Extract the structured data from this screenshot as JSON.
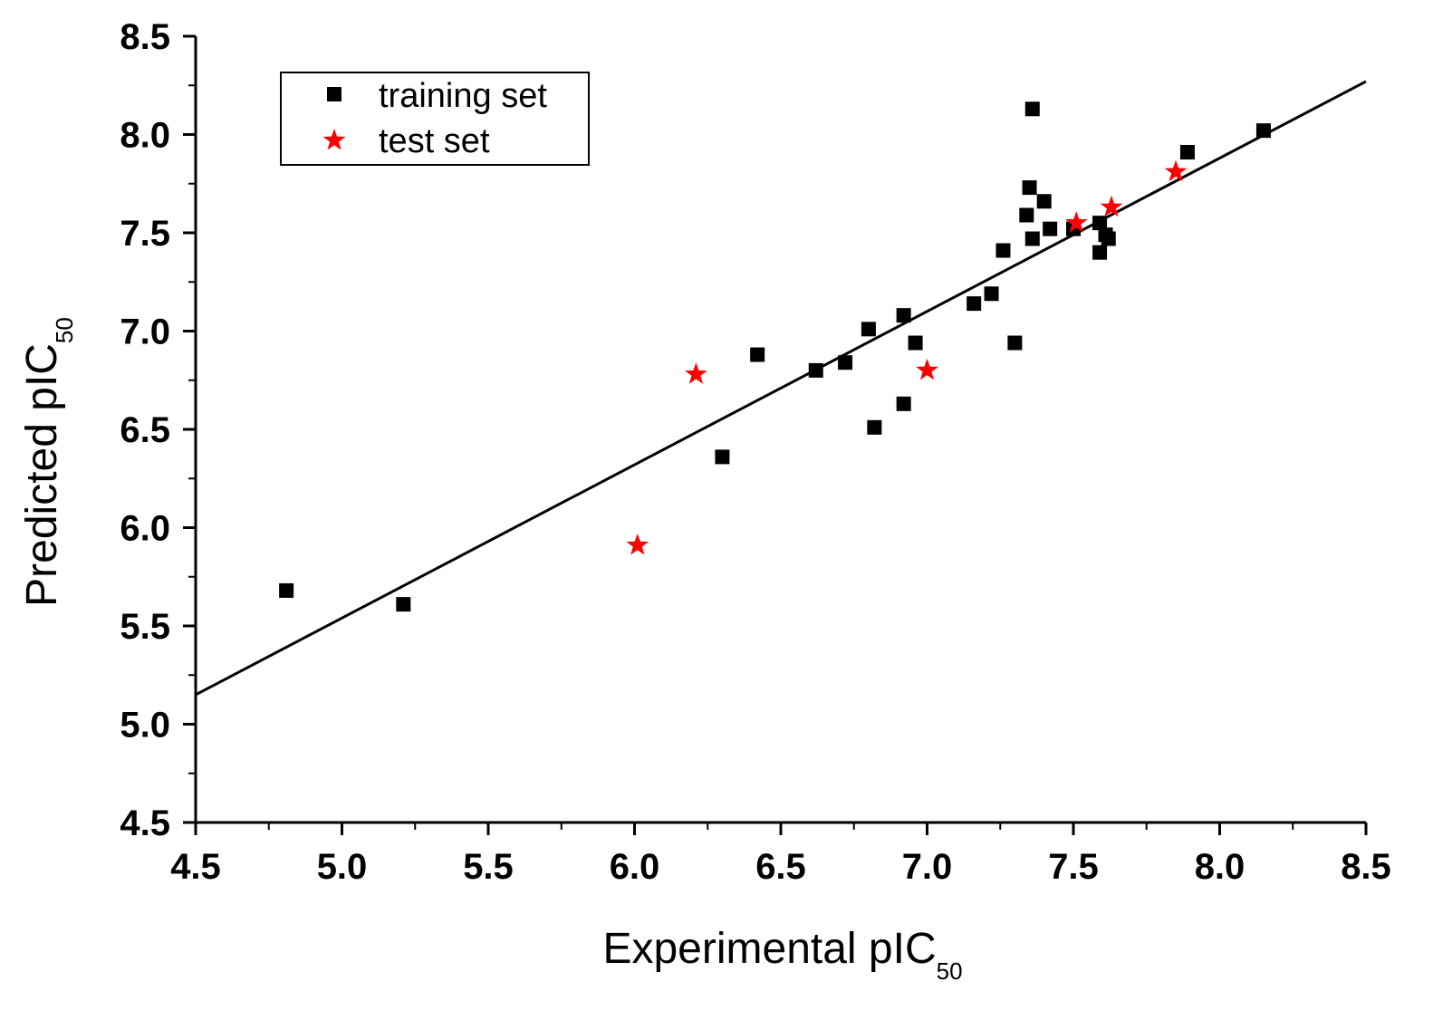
{
  "chart_data": {
    "type": "scatter",
    "xlabel": "Experimental pIC",
    "xlabel_sub": "50",
    "ylabel": "Predicted pIC",
    "ylabel_sub": "50",
    "xlim": [
      4.5,
      8.5
    ],
    "ylim": [
      4.5,
      8.5
    ],
    "xticks": [
      "4.5",
      "5.0",
      "5.5",
      "6.0",
      "6.5",
      "7.0",
      "7.5",
      "8.0",
      "8.5"
    ],
    "yticks": [
      "4.5",
      "5.0",
      "5.5",
      "6.0",
      "6.5",
      "7.0",
      "7.5",
      "8.0",
      "8.5"
    ],
    "grid": false,
    "legend_position": "top-left",
    "series": [
      {
        "name": "training set",
        "marker": "square",
        "color": "#000000",
        "points": [
          [
            4.81,
            5.68
          ],
          [
            5.21,
            5.61
          ],
          [
            6.3,
            6.36
          ],
          [
            6.42,
            6.88
          ],
          [
            6.62,
            6.8
          ],
          [
            6.72,
            6.84
          ],
          [
            6.8,
            7.01
          ],
          [
            6.82,
            6.51
          ],
          [
            6.92,
            6.63
          ],
          [
            6.92,
            7.08
          ],
          [
            6.96,
            6.94
          ],
          [
            7.16,
            7.14
          ],
          [
            7.22,
            7.19
          ],
          [
            7.26,
            7.41
          ],
          [
            7.3,
            6.94
          ],
          [
            7.34,
            7.59
          ],
          [
            7.35,
            7.73
          ],
          [
            7.36,
            7.47
          ],
          [
            7.36,
            8.13
          ],
          [
            7.4,
            7.66
          ],
          [
            7.42,
            7.52
          ],
          [
            7.5,
            7.52
          ],
          [
            7.59,
            7.55
          ],
          [
            7.59,
            7.4
          ],
          [
            7.61,
            7.49
          ],
          [
            7.62,
            7.47
          ],
          [
            7.89,
            7.91
          ],
          [
            8.15,
            8.02
          ]
        ]
      },
      {
        "name": "test set",
        "marker": "star",
        "color": "#ff0000",
        "points": [
          [
            6.01,
            5.91
          ],
          [
            6.21,
            6.78
          ],
          [
            7.0,
            6.8
          ],
          [
            7.51,
            7.55
          ],
          [
            7.63,
            7.63
          ],
          [
            7.85,
            7.81
          ]
        ]
      }
    ],
    "fit_line": {
      "x": [
        4.5,
        8.5
      ],
      "y": [
        5.15,
        8.27
      ],
      "color": "#000000"
    }
  }
}
